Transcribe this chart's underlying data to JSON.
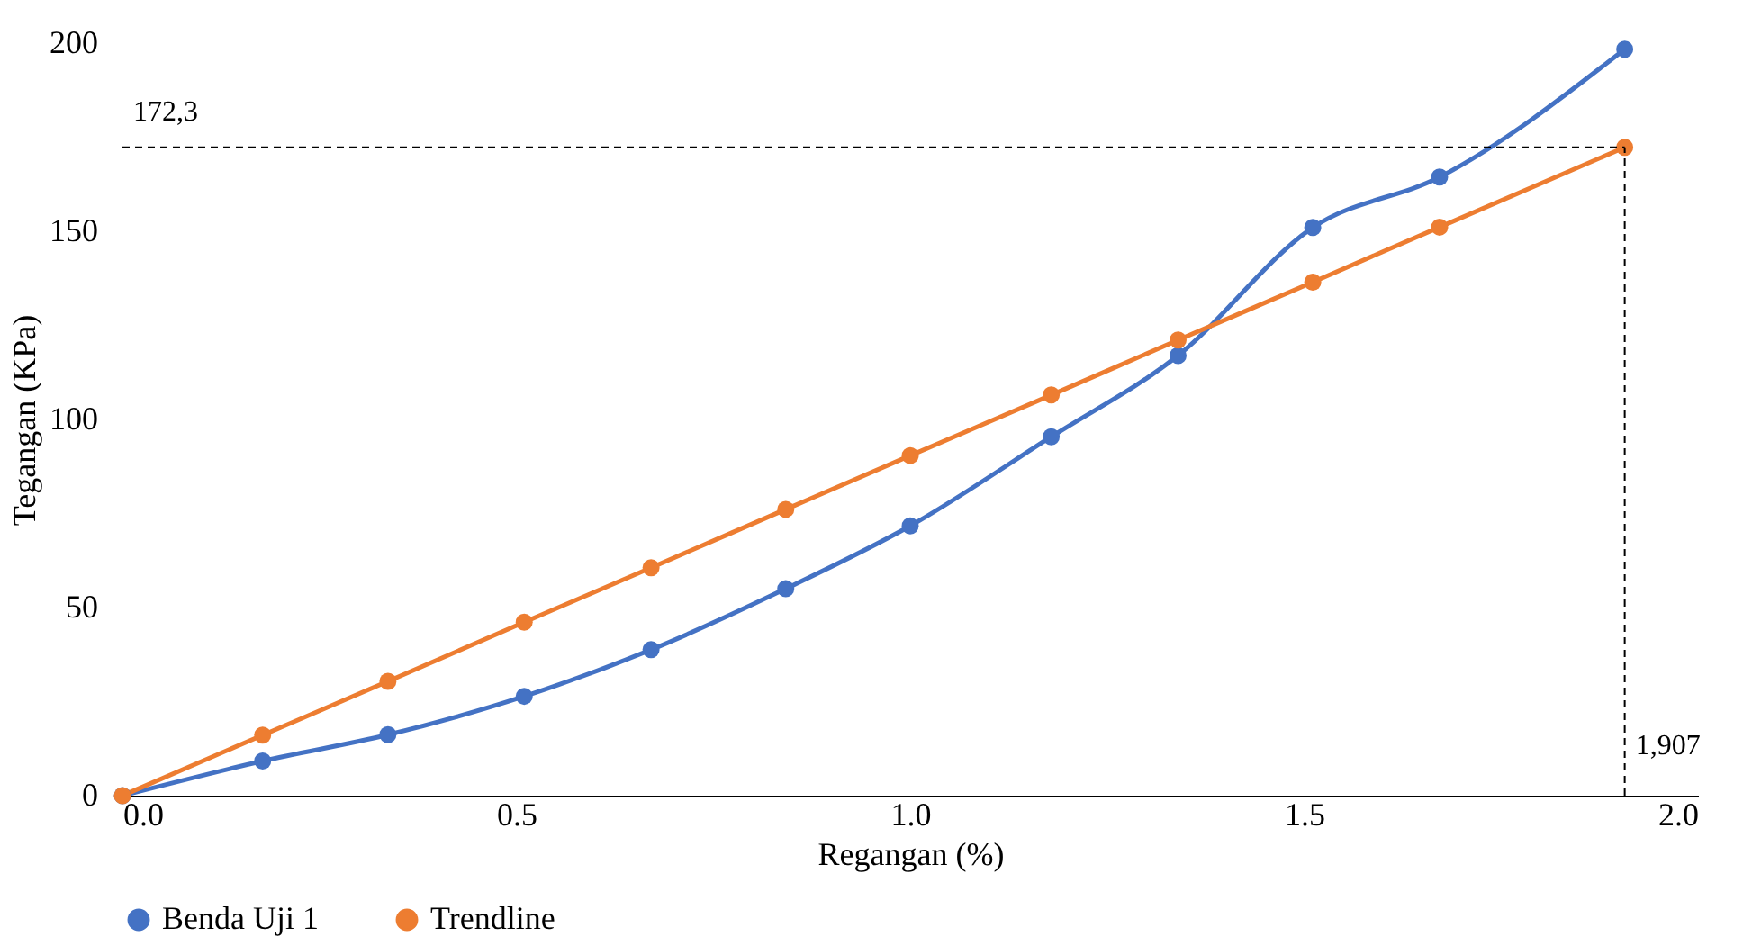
{
  "chart_data": {
    "type": "line",
    "xlabel": "Regangan (%)",
    "ylabel": "Tegangan (KPa)",
    "xlim": [
      0,
      2
    ],
    "xticks": [
      {
        "value": 0,
        "label": "0.0"
      },
      0.5,
      {
        "value": 1,
        "label": "1.0"
      },
      1.5,
      {
        "value": 2,
        "label": "2.0"
      }
    ],
    "ylim": [
      0,
      200
    ],
    "yticks": [
      0,
      50,
      100,
      150,
      200
    ],
    "grid": false,
    "legend": "bottom",
    "marker": "circle",
    "line_style": "solid",
    "series": [
      {
        "name": "Benda Uji 1",
        "color": "#4472c4",
        "x": [
          0,
          0.178,
          0.337,
          0.51,
          0.671,
          0.842,
          1.0,
          1.179,
          1.34,
          1.511,
          1.672,
          1.907
        ],
        "values": [
          0,
          9.2,
          16.2,
          26.4,
          38.8,
          55,
          71.7,
          95.4,
          117,
          151,
          164.4,
          198.4
        ]
      },
      {
        "name": "Trendline",
        "color": "#ed7d31",
        "x": [
          0,
          0.178,
          0.337,
          0.51,
          0.671,
          0.842,
          1.0,
          1.179,
          1.34,
          1.511,
          1.672,
          1.907
        ],
        "values": [
          0,
          16.1,
          30.4,
          46.1,
          60.6,
          76.1,
          90.4,
          106.5,
          121.1,
          136.5,
          151.1,
          172.3
        ]
      }
    ],
    "ref_lines": [
      {
        "axis": "y",
        "value": 172.3,
        "label": "172,3",
        "color": "#000000",
        "line_style": "dashed"
      },
      {
        "axis": "x",
        "value": 1.907,
        "label": "1,907",
        "color": "#000000",
        "line_style": "dashed"
      }
    ]
  }
}
